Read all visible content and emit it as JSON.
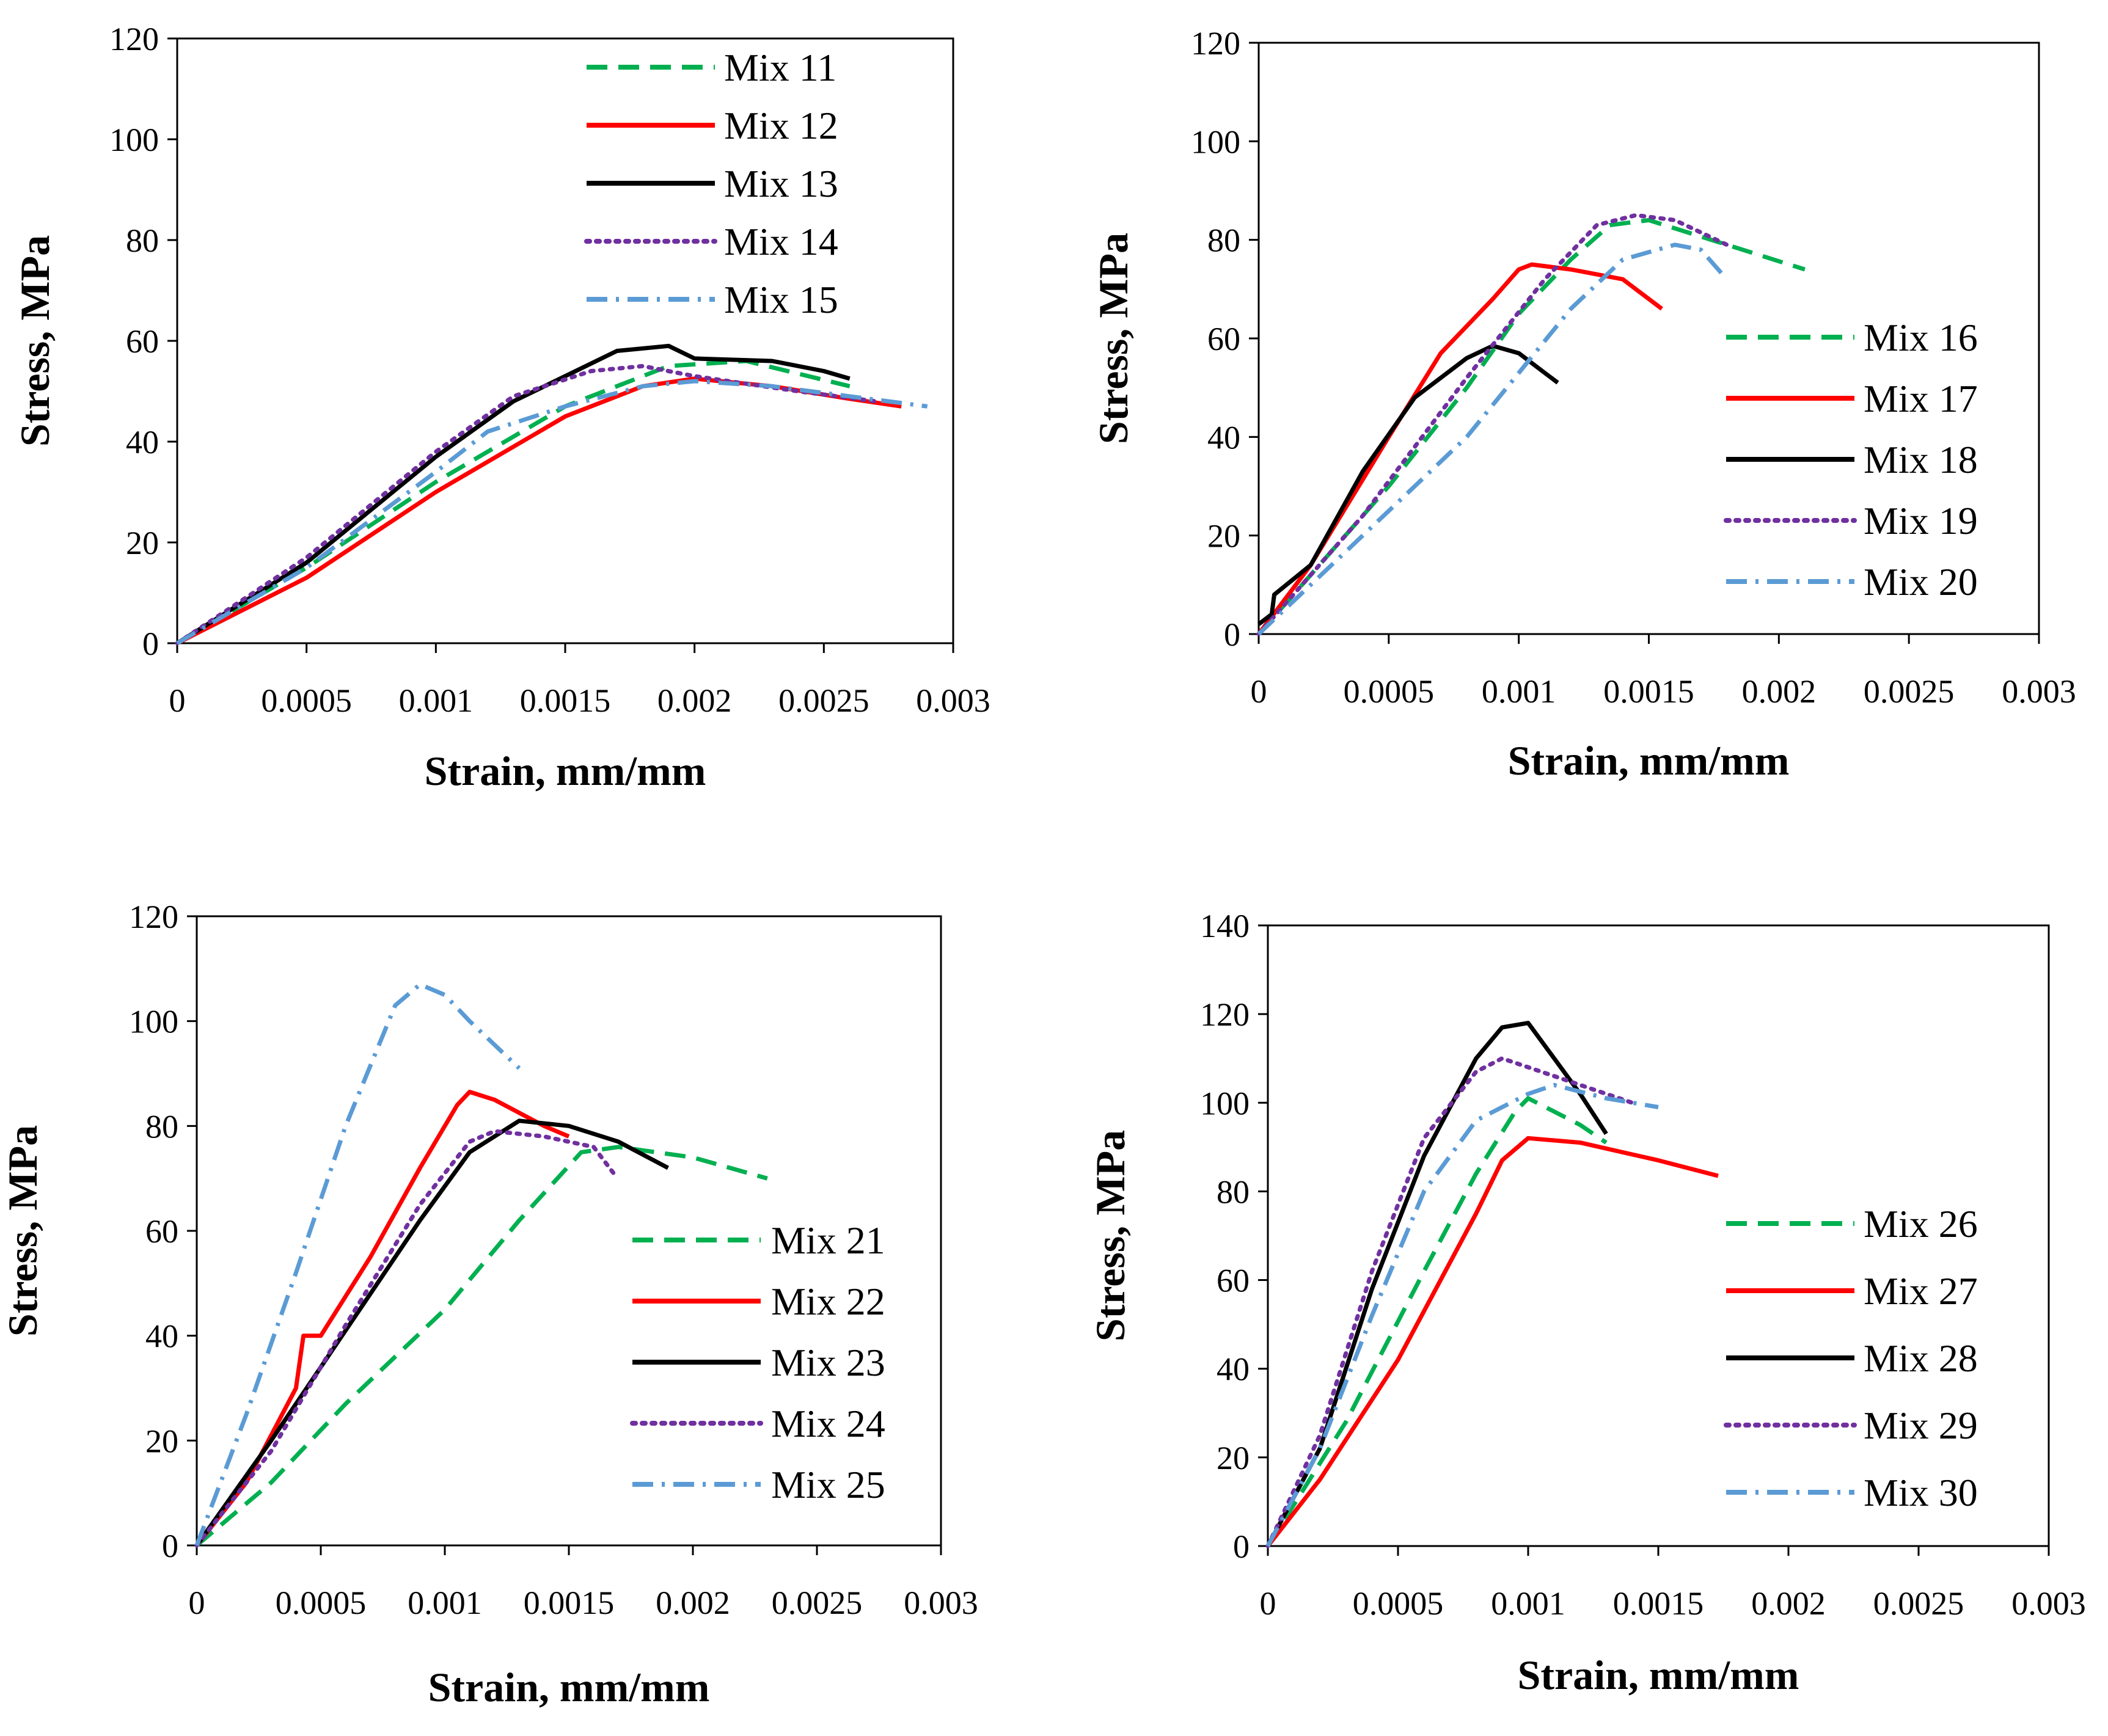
{
  "chart_data": [
    {
      "type": "line",
      "xlabel": "Strain, mm/mm",
      "ylabel": "Stress, MPa",
      "xlim": [
        0,
        0.003
      ],
      "ylim": [
        0,
        120
      ],
      "xticks": [
        0,
        0.0005,
        0.001,
        0.0015,
        0.002,
        0.0025,
        0.003
      ],
      "xtick_labels": [
        "0",
        "0.0005",
        "0.001",
        "0.0015",
        "0.002",
        "0.0025",
        "0.003"
      ],
      "yticks": [
        0,
        20,
        40,
        60,
        80,
        100,
        120
      ],
      "ytick_labels": [
        "0",
        "20",
        "40",
        "60",
        "80",
        "100",
        "120"
      ],
      "legend_position": "top-center",
      "series": [
        {
          "name": "Mix 11",
          "color": "#00b050",
          "dash": "dashed",
          "points": [
            [
              0,
              0
            ],
            [
              0.0005,
              15
            ],
            [
              0.001,
              32
            ],
            [
              0.0015,
              47
            ],
            [
              0.0019,
              55
            ],
            [
              0.0022,
              56
            ],
            [
              0.0026,
              51
            ]
          ]
        },
        {
          "name": "Mix 12",
          "color": "#ff0000",
          "dash": "solid",
          "points": [
            [
              0,
              0
            ],
            [
              0.0005,
              13
            ],
            [
              0.001,
              30
            ],
            [
              0.0015,
              45
            ],
            [
              0.0018,
              51
            ],
            [
              0.002,
              52.5
            ],
            [
              0.0023,
              51
            ],
            [
              0.0026,
              48.5
            ],
            [
              0.0028,
              47
            ]
          ]
        },
        {
          "name": "Mix 13",
          "color": "#000000",
          "dash": "solid",
          "points": [
            [
              0,
              0
            ],
            [
              0.0005,
              16
            ],
            [
              0.001,
              37
            ],
            [
              0.0013,
              48
            ],
            [
              0.0015,
              53
            ],
            [
              0.0017,
              58
            ],
            [
              0.0019,
              59
            ],
            [
              0.002,
              56.5
            ],
            [
              0.0023,
              56
            ],
            [
              0.0025,
              54
            ],
            [
              0.0026,
              52.5
            ]
          ]
        },
        {
          "name": "Mix 14",
          "color": "#7030a0",
          "dash": "dotted",
          "points": [
            [
              0,
              0
            ],
            [
              0.0005,
              17
            ],
            [
              0.001,
              38
            ],
            [
              0.0013,
              49
            ],
            [
              0.0016,
              54
            ],
            [
              0.0018,
              55
            ],
            [
              0.002,
              53
            ],
            [
              0.0024,
              50
            ],
            [
              0.0027,
              48
            ]
          ]
        },
        {
          "name": "Mix 15",
          "color": "#5b9bd5",
          "dash": "dashdot",
          "points": [
            [
              0,
              0
            ],
            [
              0.0005,
              15
            ],
            [
              0.001,
              34
            ],
            [
              0.0012,
              42
            ],
            [
              0.0015,
              47
            ],
            [
              0.0018,
              51
            ],
            [
              0.002,
              52
            ],
            [
              0.0023,
              51
            ],
            [
              0.0026,
              49
            ],
            [
              0.0029,
              47
            ]
          ]
        }
      ]
    },
    {
      "type": "line",
      "xlabel": "Strain, mm/mm",
      "ylabel": "Stress, MPa",
      "xlim": [
        0,
        0.003
      ],
      "ylim": [
        0,
        120
      ],
      "xticks": [
        0,
        0.0005,
        0.001,
        0.0015,
        0.002,
        0.0025,
        0.003
      ],
      "xtick_labels": [
        "0",
        "0.0005",
        "0.001",
        "0.0015",
        "0.002",
        "0.0025",
        "0.003"
      ],
      "yticks": [
        0,
        20,
        40,
        60,
        80,
        100,
        120
      ],
      "ytick_labels": [
        "0",
        "20",
        "40",
        "60",
        "80",
        "100",
        "120"
      ],
      "legend_position": "right",
      "series": [
        {
          "name": "Mix 16",
          "color": "#00b050",
          "dash": "dashed",
          "points": [
            [
              0,
              0
            ],
            [
              0.0005,
              30
            ],
            [
              0.0008,
              50
            ],
            [
              0.001,
              65
            ],
            [
              0.0012,
              76
            ],
            [
              0.00135,
              83
            ],
            [
              0.0015,
              84
            ],
            [
              0.0018,
              79
            ],
            [
              0.0021,
              74
            ]
          ]
        },
        {
          "name": "Mix 17",
          "color": "#ff0000",
          "dash": "solid",
          "points": [
            [
              0,
              0
            ],
            [
              0.0002,
              14
            ],
            [
              0.0005,
              40
            ],
            [
              0.0007,
              57
            ],
            [
              0.0009,
              68
            ],
            [
              0.001,
              74
            ],
            [
              0.00105,
              75
            ],
            [
              0.0012,
              74
            ],
            [
              0.0014,
              72
            ],
            [
              0.00155,
              66
            ]
          ]
        },
        {
          "name": "Mix 18",
          "color": "#000000",
          "dash": "solid",
          "points": [
            [
              0,
              2
            ],
            [
              5e-05,
              4
            ],
            [
              6e-05,
              8
            ],
            [
              0.0002,
              14
            ],
            [
              0.0004,
              33
            ],
            [
              0.0006,
              48
            ],
            [
              0.0008,
              56
            ],
            [
              0.0009,
              58.5
            ],
            [
              0.001,
              57
            ],
            [
              0.0011,
              53
            ],
            [
              0.00115,
              51
            ]
          ]
        },
        {
          "name": "Mix 19",
          "color": "#7030a0",
          "dash": "dotted",
          "points": [
            [
              0,
              0
            ],
            [
              0.0004,
              24
            ],
            [
              0.0008,
              52
            ],
            [
              0.0011,
              72
            ],
            [
              0.0013,
              83
            ],
            [
              0.00145,
              85
            ],
            [
              0.0016,
              84
            ],
            [
              0.0018,
              79
            ]
          ]
        },
        {
          "name": "Mix 20",
          "color": "#5b9bd5",
          "dash": "dashdot",
          "points": [
            [
              0,
              0
            ],
            [
              0.0004,
              20
            ],
            [
              0.0008,
              40
            ],
            [
              0.001,
              53
            ],
            [
              0.0012,
              66
            ],
            [
              0.0014,
              76
            ],
            [
              0.0016,
              79
            ],
            [
              0.0017,
              78
            ],
            [
              0.0018,
              72
            ]
          ]
        }
      ]
    },
    {
      "type": "line",
      "xlabel": "Strain, mm/mm",
      "ylabel": "Stress, MPa",
      "xlim": [
        0,
        0.003
      ],
      "ylim": [
        0,
        120
      ],
      "xticks": [
        0,
        0.0005,
        0.001,
        0.0015,
        0.002,
        0.0025,
        0.003
      ],
      "xtick_labels": [
        "0",
        "0.0005",
        "0.001",
        "0.0015",
        "0.002",
        "0.0025",
        "0.003"
      ],
      "yticks": [
        0,
        20,
        40,
        60,
        80,
        100,
        120
      ],
      "ytick_labels": [
        "0",
        "20",
        "40",
        "60",
        "80",
        "100",
        "120"
      ],
      "legend_position": "right",
      "series": [
        {
          "name": "Mix 21",
          "color": "#00b050",
          "dash": "dashed",
          "points": [
            [
              0,
              0
            ],
            [
              0.0003,
              12
            ],
            [
              0.0006,
              27
            ],
            [
              0.001,
              45
            ],
            [
              0.0013,
              62
            ],
            [
              0.00155,
              75
            ],
            [
              0.0017,
              76
            ],
            [
              0.002,
              74
            ],
            [
              0.0023,
              70
            ]
          ]
        },
        {
          "name": "Mix 22",
          "color": "#ff0000",
          "dash": "solid",
          "points": [
            [
              0,
              0
            ],
            [
              0.0002,
              12
            ],
            [
              0.0004,
              30
            ],
            [
              0.00043,
              40
            ],
            [
              0.0005,
              40
            ],
            [
              0.0007,
              55
            ],
            [
              0.0009,
              72
            ],
            [
              0.00105,
              84
            ],
            [
              0.0011,
              86.5
            ],
            [
              0.0012,
              85
            ],
            [
              0.0014,
              80
            ],
            [
              0.0015,
              78
            ]
          ]
        },
        {
          "name": "Mix 23",
          "color": "#000000",
          "dash": "solid",
          "points": [
            [
              0,
              0
            ],
            [
              0.0003,
              20
            ],
            [
              0.0006,
              41
            ],
            [
              0.0009,
              62
            ],
            [
              0.0011,
              75
            ],
            [
              0.0013,
              81
            ],
            [
              0.0015,
              80
            ],
            [
              0.0017,
              77
            ],
            [
              0.0019,
              72
            ]
          ]
        },
        {
          "name": "Mix 24",
          "color": "#7030a0",
          "dash": "dotted",
          "points": [
            [
              0,
              0
            ],
            [
              0.0003,
              18
            ],
            [
              0.0006,
              42
            ],
            [
              0.0009,
              65
            ],
            [
              0.0011,
              77
            ],
            [
              0.0012,
              79
            ],
            [
              0.0014,
              78
            ],
            [
              0.0016,
              76
            ],
            [
              0.00168,
              71
            ]
          ]
        },
        {
          "name": "Mix 25",
          "color": "#5b9bd5",
          "dash": "dashdot",
          "points": [
            [
              0,
              0
            ],
            [
              0.0002,
              25
            ],
            [
              0.0004,
              52
            ],
            [
              0.0006,
              80
            ],
            [
              0.0008,
              103
            ],
            [
              0.0009,
              107
            ],
            [
              0.001,
              105
            ],
            [
              0.0011,
              100
            ],
            [
              0.0013,
              91
            ]
          ]
        }
      ]
    },
    {
      "type": "line",
      "xlabel": "Strain, mm/mm",
      "ylabel": "Stress, MPa",
      "xlim": [
        0,
        0.003
      ],
      "ylim": [
        0,
        140
      ],
      "xticks": [
        0,
        0.0005,
        0.001,
        0.0015,
        0.002,
        0.0025,
        0.003
      ],
      "xtick_labels": [
        "0",
        "0.0005",
        "0.001",
        "0.0015",
        "0.002",
        "0.0025",
        "0.003"
      ],
      "yticks": [
        0,
        20,
        40,
        60,
        80,
        100,
        120,
        140
      ],
      "ytick_labels": [
        "0",
        "20",
        "40",
        "60",
        "80",
        "100",
        "120",
        "140"
      ],
      "legend_position": "right",
      "series": [
        {
          "name": "Mix 26",
          "color": "#00b050",
          "dash": "dashed",
          "points": [
            [
              0,
              0
            ],
            [
              0.0003,
              28
            ],
            [
              0.0006,
              62
            ],
            [
              0.0008,
              84
            ],
            [
              0.00095,
              98
            ],
            [
              0.001,
              101
            ],
            [
              0.0011,
              98
            ],
            [
              0.0012,
              95
            ],
            [
              0.0013,
              91
            ]
          ]
        },
        {
          "name": "Mix 27",
          "color": "#ff0000",
          "dash": "solid",
          "points": [
            [
              0,
              0
            ],
            [
              0.0002,
              15
            ],
            [
              0.0005,
              42
            ],
            [
              0.0008,
              75
            ],
            [
              0.0009,
              87
            ],
            [
              0.001,
              92
            ],
            [
              0.0012,
              91
            ],
            [
              0.0015,
              87
            ],
            [
              0.00173,
              83.5
            ]
          ]
        },
        {
          "name": "Mix 28",
          "color": "#000000",
          "dash": "solid",
          "points": [
            [
              0,
              0
            ],
            [
              0.0002,
              22
            ],
            [
              0.0004,
              58
            ],
            [
              0.0006,
              88
            ],
            [
              0.0008,
              110
            ],
            [
              0.0009,
              117
            ],
            [
              0.001,
              118
            ],
            [
              0.0011,
              110
            ],
            [
              0.0012,
              102
            ],
            [
              0.0013,
              93
            ]
          ]
        },
        {
          "name": "Mix 29",
          "color": "#7030a0",
          "dash": "dotted",
          "points": [
            [
              0,
              0
            ],
            [
              0.0002,
              25
            ],
            [
              0.0004,
              62
            ],
            [
              0.0006,
              92
            ],
            [
              0.0008,
              107
            ],
            [
              0.0009,
              110
            ],
            [
              0.0011,
              106
            ],
            [
              0.0013,
              102
            ],
            [
              0.0014,
              100
            ]
          ]
        },
        {
          "name": "Mix 30",
          "color": "#5b9bd5",
          "dash": "dashdot",
          "points": [
            [
              0,
              0
            ],
            [
              0.0002,
              22
            ],
            [
              0.0004,
              52
            ],
            [
              0.0006,
              80
            ],
            [
              0.0008,
              96
            ],
            [
              0.001,
              102
            ],
            [
              0.0011,
              104
            ],
            [
              0.0013,
              101
            ],
            [
              0.0015,
              99
            ]
          ]
        }
      ]
    }
  ]
}
